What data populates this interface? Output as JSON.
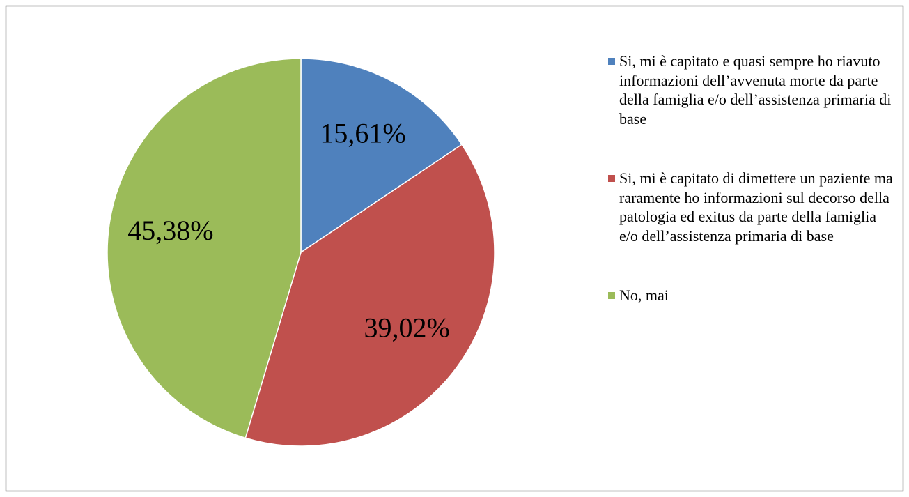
{
  "chart_data": {
    "type": "pie",
    "categories": [
      "Si, mi è capitato e quasi sempre ho riavuto informazioni dell’avvenuta morte da parte della famiglia e/o dell’assistenza primaria di base",
      "Si, mi è capitato di dimettere un paziente ma raramente ho informazioni sul decorso della patologia ed exitus da parte della famiglia e/o dell’assistenza primaria di base",
      "No, mai"
    ],
    "values": [
      15.61,
      39.02,
      45.38
    ],
    "value_labels": [
      "15,61%",
      "39,02%",
      "45,38%"
    ],
    "colors": [
      "#4f81bd",
      "#c0504d",
      "#9bbb59"
    ],
    "legend": "right"
  }
}
